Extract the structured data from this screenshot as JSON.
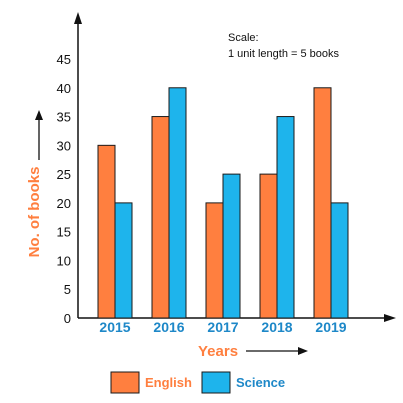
{
  "chart_data": {
    "type": "bar",
    "categories": [
      "2015",
      "2016",
      "2017",
      "2018",
      "2019"
    ],
    "series": [
      {
        "name": "English",
        "values": [
          30,
          35,
          20,
          25,
          40
        ],
        "color": "#ff7f3f"
      },
      {
        "name": "Science",
        "values": [
          20,
          40,
          25,
          35,
          20
        ],
        "color": "#1eb4ec"
      }
    ],
    "xlabel": "Years",
    "ylabel": "No. of books",
    "ylim": [
      0,
      45
    ],
    "yticks": [
      0,
      5,
      10,
      15,
      20,
      25,
      30,
      35,
      40,
      45
    ],
    "scale_note": {
      "line1": "Scale:",
      "line2": "1 unit length = 5 books"
    },
    "grid": false,
    "legend_position": "bottom",
    "colors": {
      "axis": "#111111",
      "label": "#ff7f3f",
      "tick_x": "#1e88c8",
      "bar_stroke": "#1a1a1a"
    }
  }
}
